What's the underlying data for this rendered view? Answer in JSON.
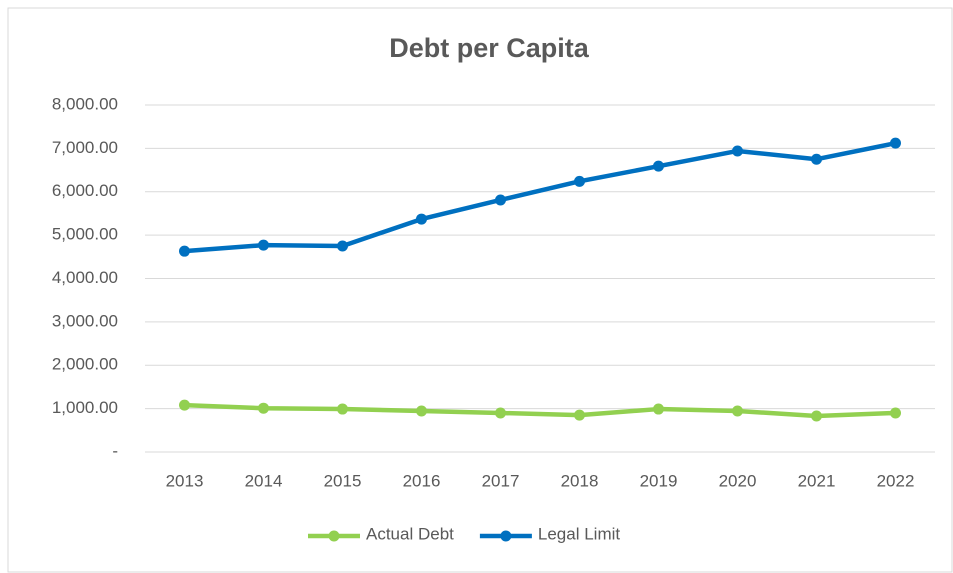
{
  "chart_data": {
    "type": "line",
    "title": "Debt per Capita",
    "categories": [
      "2013",
      "2014",
      "2015",
      "2016",
      "2017",
      "2018",
      "2019",
      "2020",
      "2021",
      "2022"
    ],
    "series": [
      {
        "name": "Actual Debt",
        "color": "#92d050",
        "values": [
          1080,
          1010,
          990,
          945,
          900,
          850,
          990,
          945,
          830,
          900
        ]
      },
      {
        "name": "Legal Limit",
        "color": "#0070c0",
        "values": [
          4630,
          4770,
          4750,
          5370,
          5810,
          6240,
          6590,
          6940,
          6750,
          7120
        ]
      }
    ],
    "ylim": [
      0,
      8000
    ],
    "yticks": [
      {
        "value": 0,
        "label": "-"
      },
      {
        "value": 1000,
        "label": "1,000.00"
      },
      {
        "value": 2000,
        "label": "2,000.00"
      },
      {
        "value": 3000,
        "label": "3,000.00"
      },
      {
        "value": 4000,
        "label": "4,000.00"
      },
      {
        "value": 5000,
        "label": "5,000.00"
      },
      {
        "value": 6000,
        "label": "6,000.00"
      },
      {
        "value": 7000,
        "label": "7,000.00"
      },
      {
        "value": 8000,
        "label": "8,000.00"
      }
    ],
    "grid": true,
    "legend": "bottom"
  }
}
